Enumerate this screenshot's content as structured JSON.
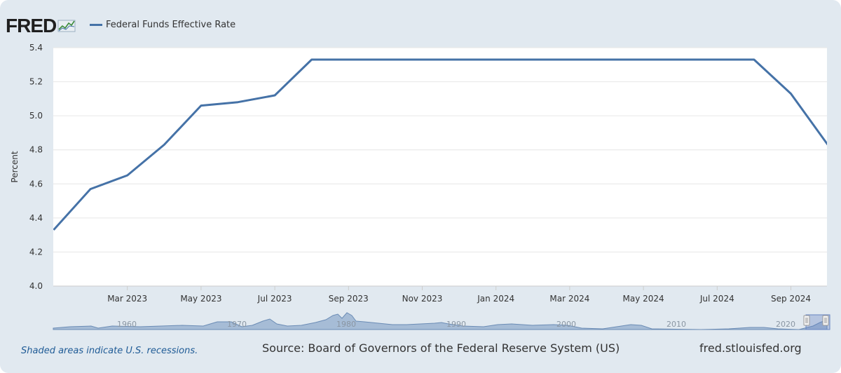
{
  "header": {
    "logo_text": "FRED",
    "legend_label": "Federal Funds Effective Rate",
    "series_color": "#4572a7"
  },
  "chart_data": {
    "type": "line",
    "title": "",
    "xlabel": "",
    "ylabel": "Percent",
    "ylim": [
      4.0,
      5.4
    ],
    "yticks": [
      "4.0",
      "4.2",
      "4.4",
      "4.6",
      "4.8",
      "5.0",
      "5.2",
      "5.4"
    ],
    "xtick_labels": [
      "Mar 2023",
      "May 2023",
      "Jul 2023",
      "Sep 2023",
      "Nov 2023",
      "Jan 2024",
      "Mar 2024",
      "May 2024",
      "Jul 2024",
      "Sep 2024"
    ],
    "grid": true,
    "legend_position": "top-left",
    "x": [
      "2023-01",
      "2023-02",
      "2023-03",
      "2023-04",
      "2023-05",
      "2023-06",
      "2023-07",
      "2023-08",
      "2023-09",
      "2023-10",
      "2023-11",
      "2023-12",
      "2024-01",
      "2024-02",
      "2024-03",
      "2024-04",
      "2024-05",
      "2024-06",
      "2024-07",
      "2024-08",
      "2024-09",
      "2024-10"
    ],
    "series": [
      {
        "name": "Federal Funds Effective Rate",
        "values": [
          4.33,
          4.57,
          4.65,
          4.83,
          5.06,
          5.08,
          5.12,
          5.33,
          5.33,
          5.33,
          5.33,
          5.33,
          5.33,
          5.33,
          5.33,
          5.33,
          5.33,
          5.33,
          5.33,
          5.33,
          5.13,
          4.83
        ]
      }
    ],
    "navigator": {
      "tick_labels": [
        "1960",
        "1970",
        "1980",
        "1990",
        "2000",
        "2010",
        "2020"
      ]
    }
  },
  "footer": {
    "recession_note": "Shaded areas indicate U.S. recessions.",
    "source": "Source: Board of Governors of the Federal Reserve System (US)",
    "url": "fred.stlouisfed.org"
  }
}
